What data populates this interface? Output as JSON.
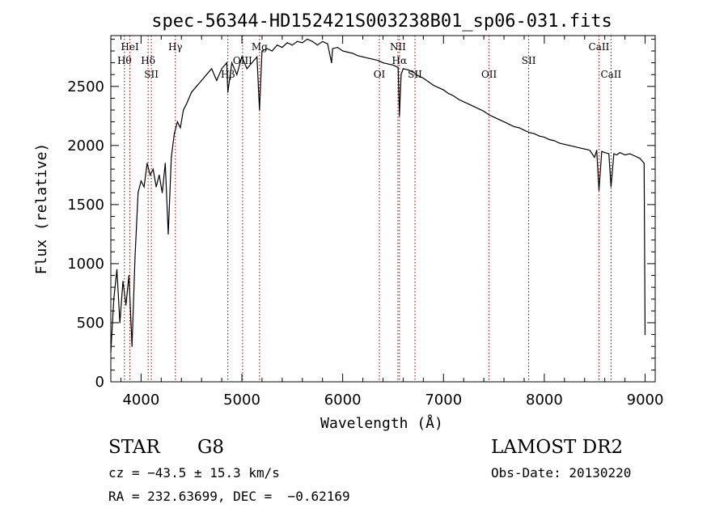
{
  "chart_data": {
    "type": "line",
    "title": "spec-56344-HD152421S003238B01_sp06-031.fits",
    "xlabel": "Wavelength (Å)",
    "ylabel": "Flux (relative)",
    "xlim": [
      3700,
      9100
    ],
    "ylim": [
      0,
      2930
    ],
    "xticks": [
      4000,
      5000,
      6000,
      7000,
      8000,
      9000
    ],
    "yticks": [
      0,
      500,
      1000,
      1500,
      2000,
      2500
    ],
    "grid": false,
    "series": [
      {
        "x": [
          3700,
          3730,
          3760,
          3790,
          3820,
          3850,
          3880,
          3910,
          3940,
          3970,
          4000,
          4030,
          4060,
          4090,
          4120,
          4150,
          4180,
          4210,
          4240,
          4270,
          4300,
          4330,
          4360,
          4390,
          4420,
          4450,
          4500,
          4550,
          4600,
          4650,
          4700,
          4750,
          4800,
          4850,
          4861,
          4900,
          4950,
          5000,
          5050,
          5100,
          5150,
          5175,
          5200,
          5250,
          5300,
          5350,
          5400,
          5450,
          5500,
          5550,
          5600,
          5650,
          5700,
          5750,
          5800,
          5850,
          5890,
          5900,
          5950,
          6000,
          6050,
          6100,
          6150,
          6200,
          6250,
          6300,
          6350,
          6400,
          6450,
          6500,
          6550,
          6563,
          6580,
          6600,
          6650,
          6700,
          6750,
          6800,
          6850,
          6900,
          6950,
          7000,
          7050,
          7100,
          7150,
          7200,
          7250,
          7300,
          7350,
          7400,
          7450,
          7500,
          7550,
          7600,
          7650,
          7700,
          7750,
          7800,
          7850,
          7900,
          7950,
          8000,
          8050,
          8100,
          8150,
          8200,
          8250,
          8300,
          8350,
          8400,
          8450,
          8498,
          8520,
          8542,
          8570,
          8600,
          8640,
          8662,
          8690,
          8720,
          8750,
          8800,
          8850,
          8900,
          8950,
          8990,
          9000
        ],
        "y": [
          250,
          700,
          950,
          500,
          850,
          650,
          900,
          300,
          1050,
          1600,
          1700,
          1650,
          1850,
          1750,
          1800,
          1650,
          1750,
          1600,
          1850,
          1250,
          1900,
          2100,
          2200,
          2150,
          2300,
          2350,
          2450,
          2500,
          2550,
          2600,
          2650,
          2550,
          2650,
          2700,
          2450,
          2700,
          2600,
          2750,
          2650,
          2700,
          2750,
          2300,
          2800,
          2820,
          2800,
          2850,
          2830,
          2870,
          2850,
          2880,
          2870,
          2900,
          2880,
          2850,
          2880,
          2860,
          2700,
          2820,
          2830,
          2800,
          2790,
          2780,
          2760,
          2750,
          2740,
          2730,
          2720,
          2700,
          2690,
          2680,
          2660,
          2250,
          2600,
          2650,
          2640,
          2620,
          2590,
          2570,
          2540,
          2510,
          2490,
          2470,
          2440,
          2420,
          2390,
          2370,
          2350,
          2330,
          2310,
          2290,
          2260,
          2240,
          2220,
          2200,
          2180,
          2160,
          2150,
          2130,
          2110,
          2100,
          2080,
          2070,
          2050,
          2040,
          2020,
          2010,
          2000,
          1990,
          1980,
          1970,
          1960,
          1900,
          1960,
          1620,
          1950,
          1940,
          1930,
          1650,
          1930,
          1920,
          1940,
          1920,
          1930,
          1910,
          1890,
          1850,
          400
        ]
      }
    ],
    "line_annotations": [
      {
        "x": 3835,
        "label": "Hθ",
        "row": 2
      },
      {
        "x": 3889,
        "label": "HeI",
        "row": 1
      },
      {
        "x": 4070,
        "label": "Hδ",
        "row": 2
      },
      {
        "x": 4102,
        "label": "SII",
        "row": 3
      },
      {
        "x": 4340,
        "label": "Hγ",
        "row": 1
      },
      {
        "x": 4861,
        "label": "Hβ",
        "row": 3
      },
      {
        "x": 5007,
        "label": "OIII",
        "row": 2
      },
      {
        "x": 5175,
        "label": "Mg",
        "row": 1
      },
      {
        "x": 6364,
        "label": "OI",
        "row": 3
      },
      {
        "x": 6548,
        "label": "NII",
        "row": 1
      },
      {
        "x": 6563,
        "label": "Hα",
        "row": 2
      },
      {
        "x": 6717,
        "label": "SII",
        "row": 3
      },
      {
        "x": 7452,
        "label": "OII",
        "row": 3
      },
      {
        "x": 7845,
        "label": "SII",
        "row": 2
      },
      {
        "x": 8542,
        "label": "CaII",
        "row": 1
      },
      {
        "x": 8662,
        "label": "CaII",
        "row": 3
      }
    ]
  },
  "info": {
    "object_type": "STAR",
    "subclass": "G8",
    "survey": "LAMOST DR2",
    "redshift_text": "cz = −43.5 ± 15.3 km/s",
    "obs_date_text": "Obs-Date: 20130220",
    "coords_text": "RA = 232.63699, DEC =  −0.62169"
  },
  "colors": {
    "spectrum": "#000000",
    "line_marker": "#8b0000",
    "text": "#000000"
  }
}
